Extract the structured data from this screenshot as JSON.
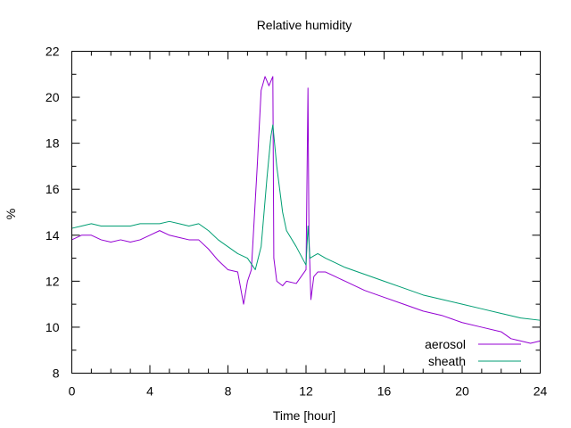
{
  "chart_data": {
    "type": "line",
    "title": "Relative humidity",
    "xlabel": "Time [hour]",
    "ylabel": "%",
    "xlim": [
      0,
      24
    ],
    "ylim": [
      8,
      22
    ],
    "xticks": [
      0,
      4,
      8,
      12,
      16,
      20,
      24
    ],
    "yticks": [
      8,
      10,
      12,
      14,
      16,
      18,
      20,
      22
    ],
    "x_tick_labels": [
      "0",
      "4",
      "8",
      "12",
      "16",
      "20",
      "24"
    ],
    "y_tick_labels": [
      "8",
      "10",
      "12",
      "14",
      "16",
      "18",
      "20",
      "22"
    ],
    "grid": false,
    "legend_position": "bottom-right",
    "series": [
      {
        "name": "aerosol",
        "color": "#9400d3",
        "x": [
          0,
          0.5,
          1,
          1.5,
          2,
          2.5,
          3,
          3.5,
          4,
          4.5,
          5,
          5.5,
          6,
          6.5,
          7,
          7.5,
          8,
          8.5,
          8.8,
          9,
          9.2,
          9.5,
          9.7,
          9.9,
          10.1,
          10.3,
          10.35,
          10.5,
          10.8,
          11,
          11.5,
          12,
          12.1,
          12.15,
          12.25,
          12.4,
          12.6,
          13,
          13.5,
          14,
          15,
          16,
          17,
          18,
          19,
          20,
          21,
          22,
          22.5,
          23,
          23.5,
          24
        ],
        "values": [
          13.8,
          14.0,
          14.0,
          13.8,
          13.7,
          13.8,
          13.7,
          13.8,
          14.0,
          14.2,
          14.0,
          13.9,
          13.8,
          13.8,
          13.4,
          12.9,
          12.5,
          12.4,
          11.0,
          12.0,
          12.5,
          17.0,
          20.3,
          20.9,
          20.5,
          20.9,
          13.0,
          12.0,
          11.8,
          12.0,
          11.9,
          12.5,
          20.4,
          14.0,
          11.2,
          12.2,
          12.4,
          12.4,
          12.2,
          12.0,
          11.6,
          11.3,
          11.0,
          10.7,
          10.5,
          10.2,
          10.0,
          9.8,
          9.5,
          9.4,
          9.3,
          9.4
        ]
      },
      {
        "name": "sheath",
        "color": "#009e73",
        "x": [
          0,
          0.5,
          1,
          1.5,
          2,
          2.5,
          3,
          3.5,
          4,
          4.5,
          5,
          5.5,
          6,
          6.5,
          7,
          7.5,
          8,
          8.5,
          9,
          9.4,
          9.7,
          10,
          10.2,
          10.3,
          10.5,
          10.8,
          11,
          11.5,
          12,
          12.1,
          12.2,
          12.4,
          12.6,
          13,
          13.5,
          14,
          15,
          16,
          17,
          18,
          19,
          20,
          21,
          22,
          23,
          24
        ],
        "values": [
          14.3,
          14.4,
          14.5,
          14.4,
          14.4,
          14.4,
          14.4,
          14.5,
          14.5,
          14.5,
          14.6,
          14.5,
          14.4,
          14.5,
          14.2,
          13.8,
          13.5,
          13.2,
          13.0,
          12.5,
          13.5,
          16.5,
          18.3,
          18.8,
          17.0,
          15.0,
          14.2,
          13.5,
          12.7,
          14.4,
          13.0,
          13.1,
          13.2,
          13.0,
          12.8,
          12.6,
          12.3,
          12.0,
          11.7,
          11.4,
          11.2,
          11.0,
          10.8,
          10.6,
          10.4,
          10.3
        ]
      }
    ]
  }
}
